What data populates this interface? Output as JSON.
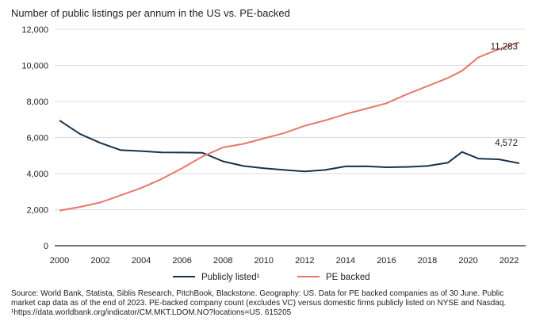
{
  "title": "Number of public listings per annum in the US vs. PE-backed",
  "source_lines": [
    "Source: World Bank, Statista, Siblis Research, PitchBook, Blackstone. Geography: US. Data for PE backed companies as of 30 June. Public",
    "market cap data as of the end of 2023. PE-backed company count (excludes VC) versus domestic firms publicly listed on NYSE and Nasdaq.",
    "¹https://data.worldbank.org/indicator/CM.MKT.LDOM.NO?locations=US. 615205"
  ],
  "colors": {
    "public": "#17324d",
    "pe": "#e8776a",
    "grid": "#dcdcdc",
    "axis": "#222222"
  },
  "chart_data": {
    "type": "line",
    "title": "Number of public listings per annum in the US vs. PE-backed",
    "xlabel": "",
    "ylabel": "",
    "xlim": [
      2000,
      2022.5
    ],
    "ylim": [
      0,
      12000
    ],
    "x_ticks": [
      2000,
      2002,
      2004,
      2006,
      2008,
      2010,
      2012,
      2014,
      2016,
      2018,
      2020,
      2022
    ],
    "y_ticks": [
      0,
      2000,
      4000,
      6000,
      8000,
      10000,
      12000
    ],
    "y_tick_labels": [
      "0",
      "2,000",
      "4,000",
      "6,000",
      "8,000",
      "10,000",
      "12,000"
    ],
    "grid": "horizontal",
    "legend_position": "bottom",
    "series": [
      {
        "name": "Publicly listed¹",
        "color": "#17324d",
        "end_label": "4,572",
        "points": [
          [
            2000,
            6950
          ],
          [
            2001,
            6200
          ],
          [
            2002,
            5700
          ],
          [
            2003,
            5300
          ],
          [
            2004,
            5250
          ],
          [
            2005,
            5180
          ],
          [
            2006,
            5170
          ],
          [
            2007,
            5150
          ],
          [
            2008,
            4680
          ],
          [
            2009,
            4420
          ],
          [
            2010,
            4300
          ],
          [
            2011,
            4200
          ],
          [
            2012,
            4120
          ],
          [
            2013,
            4200
          ],
          [
            2014,
            4400
          ],
          [
            2015,
            4410
          ],
          [
            2016,
            4350
          ],
          [
            2017,
            4370
          ],
          [
            2018,
            4420
          ],
          [
            2019,
            4600
          ],
          [
            2019.7,
            5200
          ],
          [
            2020.5,
            4830
          ],
          [
            2021.5,
            4790
          ],
          [
            2022.5,
            4572
          ]
        ]
      },
      {
        "name": "PE backed",
        "color": "#e8776a",
        "end_label": "11,283",
        "points": [
          [
            2000,
            1950
          ],
          [
            2001,
            2150
          ],
          [
            2002,
            2400
          ],
          [
            2003,
            2800
          ],
          [
            2004,
            3200
          ],
          [
            2005,
            3700
          ],
          [
            2006,
            4300
          ],
          [
            2007,
            4950
          ],
          [
            2008,
            5450
          ],
          [
            2009,
            5650
          ],
          [
            2010,
            5950
          ],
          [
            2011,
            6250
          ],
          [
            2012,
            6650
          ],
          [
            2013,
            6950
          ],
          [
            2014,
            7300
          ],
          [
            2015,
            7600
          ],
          [
            2016,
            7900
          ],
          [
            2017,
            8400
          ],
          [
            2018,
            8850
          ],
          [
            2019,
            9300
          ],
          [
            2019.7,
            9700
          ],
          [
            2020.5,
            10450
          ],
          [
            2021.5,
            10900
          ],
          [
            2022.5,
            11283
          ]
        ]
      }
    ]
  }
}
